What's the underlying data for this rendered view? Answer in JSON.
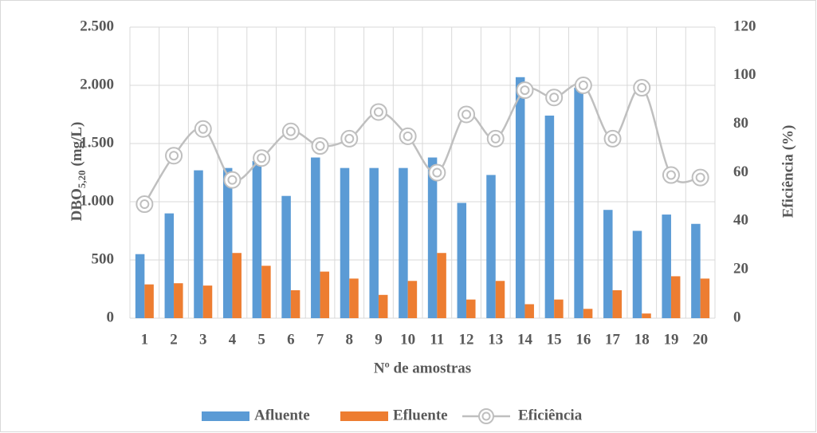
{
  "chart_data": {
    "type": "bar_line",
    "x_label": "Nº de amostras",
    "y_label": {
      "base": "DBO",
      "sub": "5,20",
      "rest": " (mg/L)"
    },
    "y2_label": "Eficiência (%)",
    "categories": [
      "1",
      "2",
      "3",
      "4",
      "5",
      "6",
      "7",
      "8",
      "9",
      "10",
      "11",
      "12",
      "13",
      "14",
      "15",
      "16",
      "17",
      "18",
      "19",
      "20"
    ],
    "series": [
      {
        "name": "Afluente",
        "type": "bar",
        "color": "#5b9bd5",
        "values": [
          550,
          900,
          1270,
          1290,
          1350,
          1050,
          1380,
          1290,
          1290,
          1290,
          1380,
          990,
          1230,
          2070,
          1740,
          1980,
          930,
          750,
          890,
          810
        ]
      },
      {
        "name": "Efluente",
        "type": "bar",
        "color": "#ed7d31",
        "values": [
          290,
          300,
          280,
          560,
          450,
          240,
          400,
          340,
          200,
          320,
          560,
          160,
          320,
          120,
          160,
          80,
          240,
          40,
          360,
          340
        ]
      },
      {
        "name": "Eficiência",
        "type": "line",
        "axis": "y2",
        "color": "#bfbfbf",
        "values": [
          47,
          67,
          78,
          57,
          66,
          77,
          71,
          74,
          85,
          75,
          60,
          84,
          74,
          94,
          91,
          96,
          74,
          95,
          59,
          58
        ]
      }
    ],
    "ylim": [
      0,
      2500
    ],
    "yticks": [
      0,
      {
        "value": 500,
        "label": "500"
      },
      {
        "value": 1000,
        "label": "1.000"
      },
      {
        "value": 1500,
        "label": "1.500"
      },
      {
        "value": 2000,
        "label": "2.000"
      },
      {
        "value": 2500,
        "label": "2.500"
      }
    ],
    "y2lim": [
      0,
      120
    ],
    "y2ticks": [
      0,
      20,
      40,
      60,
      80,
      100,
      120
    ],
    "grid": true,
    "legend": "bottom"
  }
}
